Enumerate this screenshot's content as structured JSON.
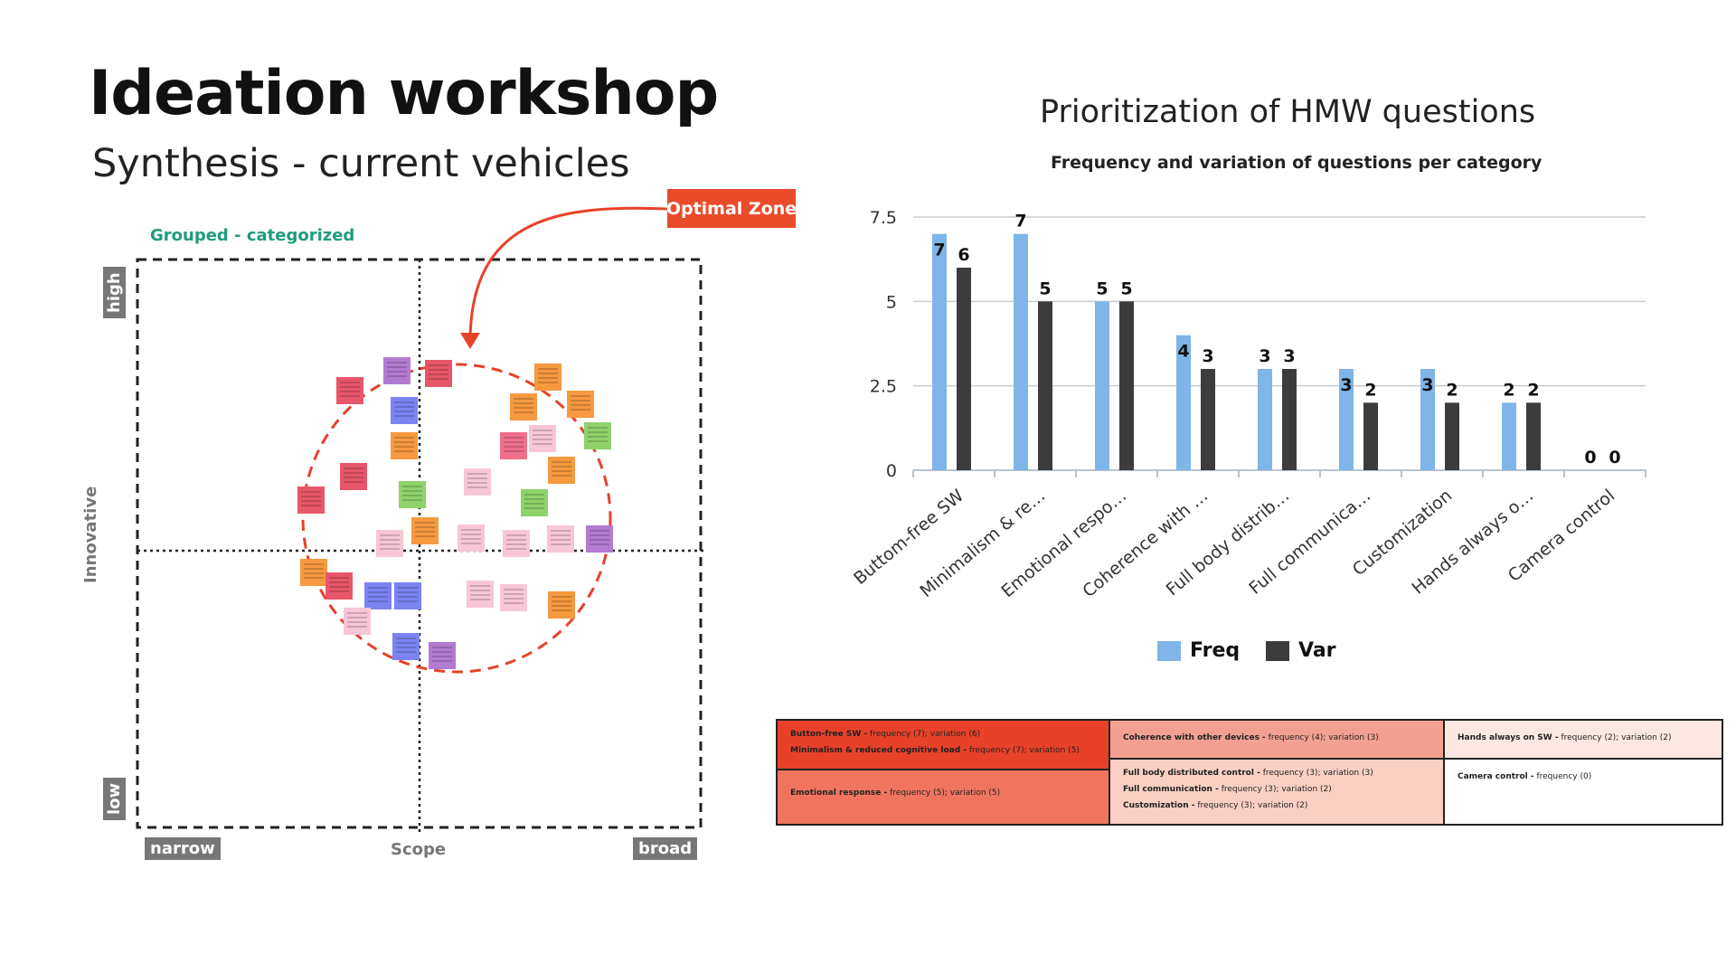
{
  "header": {
    "title": "Ideation workshop",
    "subtitle": "Synthesis - current vehicles"
  },
  "matrix": {
    "group_label": "Grouped - categorized",
    "optimal_zone_label": "Optimal Zone",
    "x_axis_label": "Scope",
    "x_low": "narrow",
    "x_high": "broad",
    "y_axis_label": "Innovative",
    "y_low": "low",
    "y_high": "high",
    "sticky_colors": [
      "#f0708a",
      "#f6993f",
      "#8ed36a",
      "#f8c6d7",
      "#7b83f3",
      "#b27bd1",
      "#e8566a"
    ]
  },
  "chart": {
    "title": "Prioritization of HMW questions",
    "subtitle": "Frequency and variation of questions per category"
  },
  "chart_data": {
    "type": "bar",
    "categories": [
      "Buttom-free SW",
      "Minimalism & re…",
      "Emotional respo…",
      "Coherence with …",
      "Full body distrib…",
      "Full communica…",
      "Customization",
      "Hands always o…",
      "Camera control"
    ],
    "series": [
      {
        "name": "Freq",
        "values": [
          7,
          7,
          5,
          4,
          3,
          3,
          3,
          2,
          0
        ],
        "color": "#7fb5e8"
      },
      {
        "name": "Var",
        "values": [
          6,
          5,
          5,
          3,
          3,
          2,
          2,
          2,
          0
        ],
        "color": "#3c3c3e"
      }
    ],
    "yticks": [
      "0",
      "2.5",
      "5",
      "7.5"
    ],
    "ylim": [
      0,
      7.5
    ],
    "grid": true,
    "legend_position": "bottom"
  },
  "summary_table": {
    "col1": {
      "top": [
        {
          "name": "Button-free SW -",
          "detail": " frequency (7); variation (6)"
        },
        {
          "name": "Minimalism & reduced cognitive load -",
          "detail": " frequency (7); variation (5)"
        }
      ],
      "bottom": [
        {
          "name": "Emotional response -",
          "detail": " frequency (5); variation (5)"
        }
      ]
    },
    "col2": {
      "top": [
        {
          "name": "Coherence with other devices -",
          "detail": " frequency (4); variation (3)"
        }
      ],
      "bottom": [
        {
          "name": "Full body distributed control -",
          "detail": " frequency (3); variation (3)"
        },
        {
          "name": "Full communication -",
          "detail": " frequency (3); variation (2)"
        },
        {
          "name": "Customization -",
          "detail": " frequency (3); variation (2)"
        }
      ]
    },
    "col3": {
      "top": [
        {
          "name": "Hands always on SW -",
          "detail": " frequency (2); variation (2)"
        }
      ],
      "bottom": [
        {
          "name": "Camera control -",
          "detail": " frequency (0)"
        }
      ]
    }
  }
}
